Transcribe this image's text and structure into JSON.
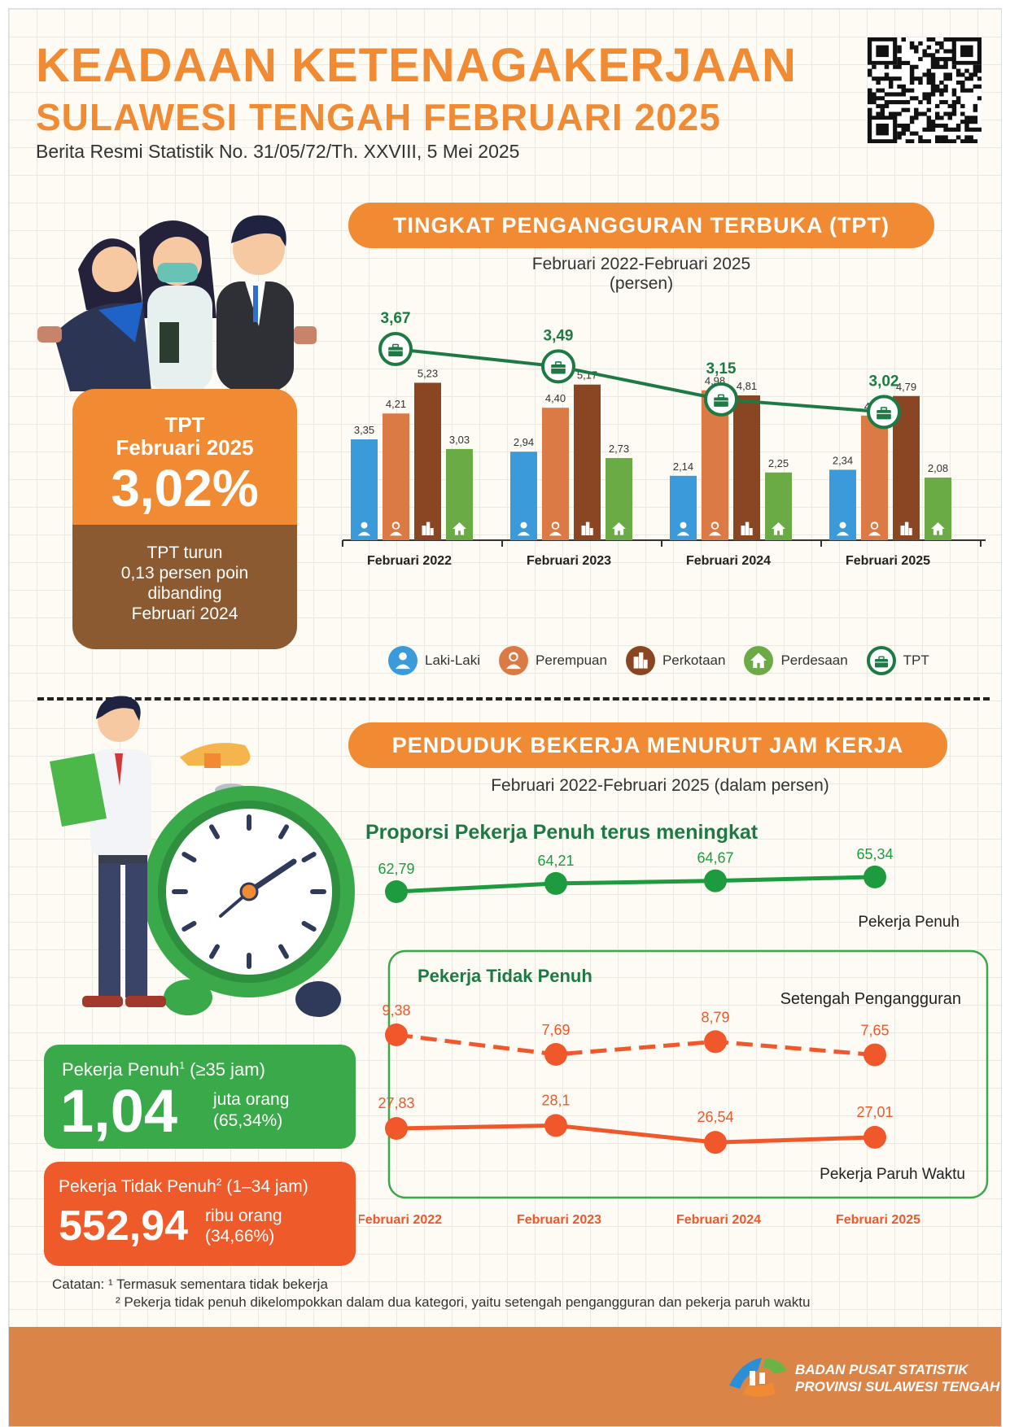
{
  "header": {
    "title_line1": "KEADAAN KETENAGAKERJAAN",
    "title_line2": "SULAWESI TENGAH FEBRUARI 2025",
    "subtitle": "Berita Resmi Statistik No. 31/05/72/Th. XXVIII, 5 Mei 2025"
  },
  "tpt_section": {
    "heading": "TINGKAT PENGANGGURAN TERBUKA (TPT)",
    "period": "Februari 2022-Februari 2025",
    "unit": "(persen)"
  },
  "tpt_card": {
    "label_line1": "TPT",
    "label_line2": "Februari 2025",
    "value": "3,02%",
    "note_line1": "TPT turun",
    "note_line2": "0,13 persen poin",
    "note_line3": "dibanding",
    "note_line4": "Februari 2024"
  },
  "hours_section": {
    "heading": "PENDUDUK BEKERJA MENURUT JAM KERJA",
    "period": "Februari 2022-Februari 2025 (dalam persen)",
    "full_title": "Proporsi Pekerja Penuh terus meningkat",
    "full_series_label": "Pekerja Penuh",
    "partial_box_title": "Pekerja Tidak Penuh",
    "under_label": "Setengah Pengangguran",
    "part_time_label": "Pekerja Paruh Waktu"
  },
  "full_card": {
    "label": "Pekerja Penuh",
    "sup": "1",
    "range": "(≥35  jam)",
    "value": "1,04",
    "unit_line1": "juta orang",
    "unit_line2": "(65,34%)"
  },
  "partial_card": {
    "label": "Pekerja Tidak Penuh",
    "sup": "2",
    "range": "(1–34 jam)",
    "value": "552,94",
    "unit_line1": "ribu orang",
    "unit_line2": "(34,66%)"
  },
  "notes": {
    "line1": "Catatan: ¹ Termasuk sementara tidak bekerja",
    "line2": "² Pekerja tidak penuh dikelompokkan dalam dua kategori, yaitu setengah pengangguran dan pekerja paruh waktu"
  },
  "footer": {
    "org_line1": "BADAN PUSAT STATISTIK",
    "org_line2": "PROVINSI SULAWESI TENGAH"
  },
  "colors": {
    "orange": "#f08a33",
    "laki": "#3b9ad9",
    "perempuan": "#dc7a45",
    "perkotaan": "#8a4522",
    "perdesaan": "#6aab45",
    "tpt": "#1e7a45",
    "full": "#1e9b3f",
    "partial": "#f0582b"
  },
  "chart_data": [
    {
      "type": "bar",
      "title": "TINGKAT PENGANGGURAN TERBUKA (TPT)",
      "categories": [
        "Februari 2022",
        "Februari 2023",
        "Februari 2024",
        "Februari 2025"
      ],
      "series": [
        {
          "name": "Laki-Laki",
          "values": [
            3.35,
            2.94,
            2.14,
            2.34
          ],
          "labels": [
            "3,35",
            "2,94",
            "2,14",
            "2,34"
          ],
          "icon": "male-person-icon"
        },
        {
          "name": "Perempuan",
          "values": [
            4.21,
            4.4,
            4.98,
            4.14
          ],
          "labels": [
            "4,21",
            "4,40",
            "4,98",
            "4,14"
          ],
          "icon": "female-person-icon"
        },
        {
          "name": "Perkotaan",
          "values": [
            5.23,
            5.17,
            4.81,
            4.79
          ],
          "labels": [
            "5,23",
            "5,17",
            "4,81",
            "4,79"
          ],
          "icon": "city-building-icon"
        },
        {
          "name": "Perdesaan",
          "values": [
            3.03,
            2.73,
            2.25,
            2.08
          ],
          "labels": [
            "3,03",
            "2,73",
            "2,25",
            "2,08"
          ],
          "icon": "village-house-icon"
        },
        {
          "name": "TPT",
          "type": "line",
          "values": [
            3.67,
            3.49,
            3.15,
            3.02
          ],
          "labels": [
            "3,67",
            "3,49",
            "3,15",
            "3,02"
          ],
          "icon": "briefcase-icon"
        }
      ]
    },
    {
      "type": "line",
      "title": "PENDUDUK BEKERJA MENURUT JAM KERJA",
      "categories": [
        "Februari 2022",
        "Februari 2023",
        "Februari 2024",
        "Februari 2025"
      ],
      "series": [
        {
          "name": "Pekerja Penuh",
          "values": [
            62.79,
            64.21,
            64.67,
            65.34
          ],
          "labels": [
            "62,79",
            "64,21",
            "64,67",
            "65,34"
          ],
          "style": "solid"
        },
        {
          "name": "Setengah Pengangguran",
          "values": [
            9.38,
            7.69,
            8.79,
            7.65
          ],
          "labels": [
            "9,38",
            "7,69",
            "8,79",
            "7,65"
          ],
          "style": "dashed"
        },
        {
          "name": "Pekerja Paruh Waktu",
          "values": [
            27.83,
            28.1,
            26.54,
            27.01
          ],
          "labels": [
            "27,83",
            "28,1",
            "26,54",
            "27,01"
          ],
          "style": "solid"
        }
      ]
    }
  ]
}
